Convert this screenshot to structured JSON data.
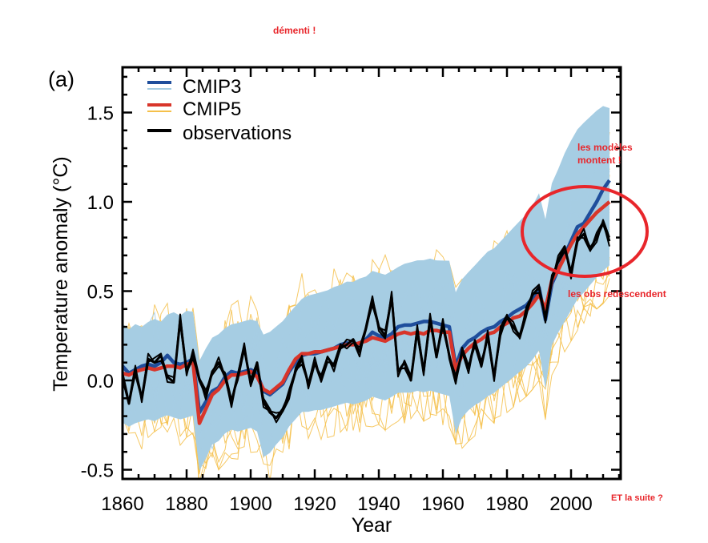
{
  "chart_data": {
    "type": "line",
    "panel_label": "(a)",
    "title": "",
    "xlabel": "Year",
    "ylabel": "Temperature anomaly (°C)",
    "xlim": [
      1860,
      2015
    ],
    "ylim": [
      -0.55,
      1.75
    ],
    "xticks": [
      1860,
      1880,
      1900,
      1920,
      1940,
      1960,
      1980,
      2000
    ],
    "xtick_labels": [
      "1860",
      "1880",
      "1900",
      "1920",
      "1940",
      "1960",
      "1980",
      "2000"
    ],
    "yticks": [
      -0.5,
      0.0,
      0.5,
      1.0,
      1.5
    ],
    "ytick_labels": [
      "-0.5",
      "0.0",
      "0.5",
      "1.0",
      "1.5"
    ],
    "grid": false,
    "legend_position": "top-left",
    "legend": [
      {
        "label": "CMIP3",
        "color": "#1f4e9c",
        "ensemble_color": "#a6cde3"
      },
      {
        "label": "CMIP5",
        "color": "#d8352a",
        "ensemble_color": "#f5c04a"
      },
      {
        "label": "observations",
        "color": "#000000"
      }
    ],
    "colors": {
      "cmip3_mean": "#1f4e9c",
      "cmip3_ensemble": "#a6cde3",
      "cmip5_mean": "#d8352a",
      "cmip5_ensemble": "#f5c04a",
      "observations": "#000000",
      "annotation": "#e8262b"
    },
    "x": [
      1860,
      1862,
      1864,
      1866,
      1868,
      1870,
      1872,
      1874,
      1876,
      1878,
      1880,
      1882,
      1884,
      1886,
      1888,
      1890,
      1892,
      1894,
      1896,
      1898,
      1900,
      1902,
      1904,
      1906,
      1908,
      1910,
      1912,
      1914,
      1916,
      1918,
      1920,
      1922,
      1924,
      1926,
      1928,
      1930,
      1932,
      1934,
      1936,
      1938,
      1940,
      1942,
      1944,
      1946,
      1948,
      1950,
      1952,
      1954,
      1956,
      1958,
      1960,
      1962,
      1964,
      1966,
      1968,
      1970,
      1972,
      1974,
      1976,
      1978,
      1980,
      1982,
      1984,
      1986,
      1988,
      1990,
      1992,
      1994,
      1996,
      1998,
      2000,
      2002,
      2004,
      2006,
      2008,
      2010,
      2012
    ],
    "series": [
      {
        "name": "CMIP3",
        "values": [
          0.08,
          0.04,
          0.06,
          0.08,
          0.09,
          0.08,
          0.1,
          0.14,
          0.1,
          0.09,
          0.1,
          0.12,
          -0.18,
          -0.12,
          -0.06,
          -0.04,
          0.02,
          0.05,
          0.04,
          0.05,
          0.06,
          0.04,
          -0.06,
          -0.08,
          -0.05,
          -0.02,
          0.05,
          0.1,
          0.14,
          0.15,
          0.15,
          0.16,
          0.17,
          0.18,
          0.2,
          0.21,
          0.2,
          0.21,
          0.23,
          0.27,
          0.25,
          0.24,
          0.26,
          0.3,
          0.31,
          0.31,
          0.32,
          0.33,
          0.33,
          0.32,
          0.31,
          0.3,
          0.08,
          0.18,
          0.22,
          0.24,
          0.27,
          0.29,
          0.3,
          0.33,
          0.35,
          0.38,
          0.4,
          0.42,
          0.46,
          0.52,
          0.34,
          0.54,
          0.62,
          0.7,
          0.78,
          0.86,
          0.88,
          0.94,
          1.0,
          1.07,
          1.12
        ]
      },
      {
        "name": "CMIP5",
        "values": [
          0.04,
          0.03,
          0.05,
          0.06,
          0.07,
          0.06,
          0.07,
          0.08,
          0.08,
          0.07,
          0.09,
          0.1,
          -0.24,
          -0.16,
          -0.08,
          -0.05,
          0.0,
          0.03,
          0.03,
          0.04,
          0.05,
          0.02,
          -0.05,
          -0.07,
          -0.04,
          -0.01,
          0.06,
          0.12,
          0.15,
          0.15,
          0.16,
          0.16,
          0.17,
          0.18,
          0.19,
          0.2,
          0.2,
          0.21,
          0.22,
          0.24,
          0.23,
          0.22,
          0.24,
          0.26,
          0.27,
          0.26,
          0.27,
          0.26,
          0.28,
          0.28,
          0.27,
          0.27,
          0.06,
          0.14,
          0.18,
          0.21,
          0.23,
          0.26,
          0.27,
          0.3,
          0.32,
          0.35,
          0.36,
          0.39,
          0.43,
          0.48,
          0.4,
          0.56,
          0.62,
          0.69,
          0.76,
          0.82,
          0.86,
          0.9,
          0.94,
          0.97,
          1.0
        ]
      },
      {
        "name": "observations",
        "values": [
          0.02,
          -0.13,
          0.06,
          -0.1,
          0.12,
          0.1,
          0.14,
          0.02,
          -0.01,
          0.34,
          0.05,
          0.15,
          0.0,
          -0.08,
          0.05,
          0.1,
          0.02,
          -0.12,
          0.03,
          0.18,
          -0.02,
          0.1,
          -0.12,
          -0.18,
          -0.21,
          -0.16,
          -0.08,
          0.05,
          0.12,
          -0.02,
          0.1,
          0.0,
          0.13,
          0.08,
          0.18,
          0.2,
          0.23,
          0.16,
          0.29,
          0.45,
          0.3,
          0.25,
          0.47,
          0.05,
          0.1,
          0.0,
          0.28,
          0.05,
          0.35,
          0.13,
          0.32,
          0.14,
          0.0,
          0.16,
          0.07,
          0.22,
          0.08,
          0.25,
          0.02,
          0.28,
          0.35,
          0.3,
          0.25,
          0.38,
          0.48,
          0.52,
          0.35,
          0.56,
          0.67,
          0.75,
          0.6,
          0.78,
          0.82,
          0.74,
          0.8,
          0.88,
          0.78
        ]
      },
      {
        "name": "ensemble_upper",
        "values": [
          0.35,
          0.32,
          0.35,
          0.33,
          0.36,
          0.38,
          0.36,
          0.4,
          0.42,
          0.4,
          0.43,
          0.42,
          0.15,
          0.22,
          0.28,
          0.3,
          0.33,
          0.35,
          0.36,
          0.37,
          0.38,
          0.37,
          0.3,
          0.32,
          0.35,
          0.38,
          0.42,
          0.46,
          0.5,
          0.52,
          0.53,
          0.54,
          0.55,
          0.57,
          0.58,
          0.6,
          0.6,
          0.62,
          0.63,
          0.66,
          0.65,
          0.64,
          0.66,
          0.68,
          0.7,
          0.71,
          0.72,
          0.72,
          0.73,
          0.72,
          0.72,
          0.72,
          0.55,
          0.62,
          0.66,
          0.7,
          0.74,
          0.78,
          0.8,
          0.84,
          0.88,
          0.92,
          0.96,
          1.0,
          1.05,
          1.12,
          0.98,
          1.18,
          1.26,
          1.35,
          1.42,
          1.48,
          1.52,
          1.55,
          1.58,
          1.6,
          1.58
        ]
      },
      {
        "name": "ensemble_lower",
        "values": [
          -0.28,
          -0.3,
          -0.28,
          -0.27,
          -0.26,
          -0.27,
          -0.25,
          -0.24,
          -0.25,
          -0.26,
          -0.25,
          -0.24,
          -0.55,
          -0.48,
          -0.4,
          -0.38,
          -0.34,
          -0.32,
          -0.33,
          -0.32,
          -0.31,
          -0.33,
          -0.48,
          -0.45,
          -0.4,
          -0.36,
          -0.3,
          -0.26,
          -0.22,
          -0.22,
          -0.21,
          -0.21,
          -0.2,
          -0.19,
          -0.18,
          -0.17,
          -0.18,
          -0.17,
          -0.16,
          -0.14,
          -0.15,
          -0.16,
          -0.14,
          -0.12,
          -0.12,
          -0.12,
          -0.11,
          -0.12,
          -0.11,
          -0.12,
          -0.13,
          -0.14,
          -0.35,
          -0.26,
          -0.22,
          -0.19,
          -0.17,
          -0.14,
          -0.12,
          -0.09,
          -0.06,
          -0.03,
          0.0,
          0.03,
          0.07,
          0.12,
          -0.1,
          0.15,
          0.22,
          0.28,
          0.34,
          0.4,
          0.44,
          0.48,
          0.52,
          0.55,
          0.58
        ]
      }
    ]
  },
  "annotations": {
    "top_center": "démenti !",
    "models_rise": "les modèles montent !",
    "models_rise_line1": "les modèles",
    "models_rise_line2": "montent !",
    "obs_fall": "les obs redescendent",
    "what_next": "ET la suite ?"
  }
}
